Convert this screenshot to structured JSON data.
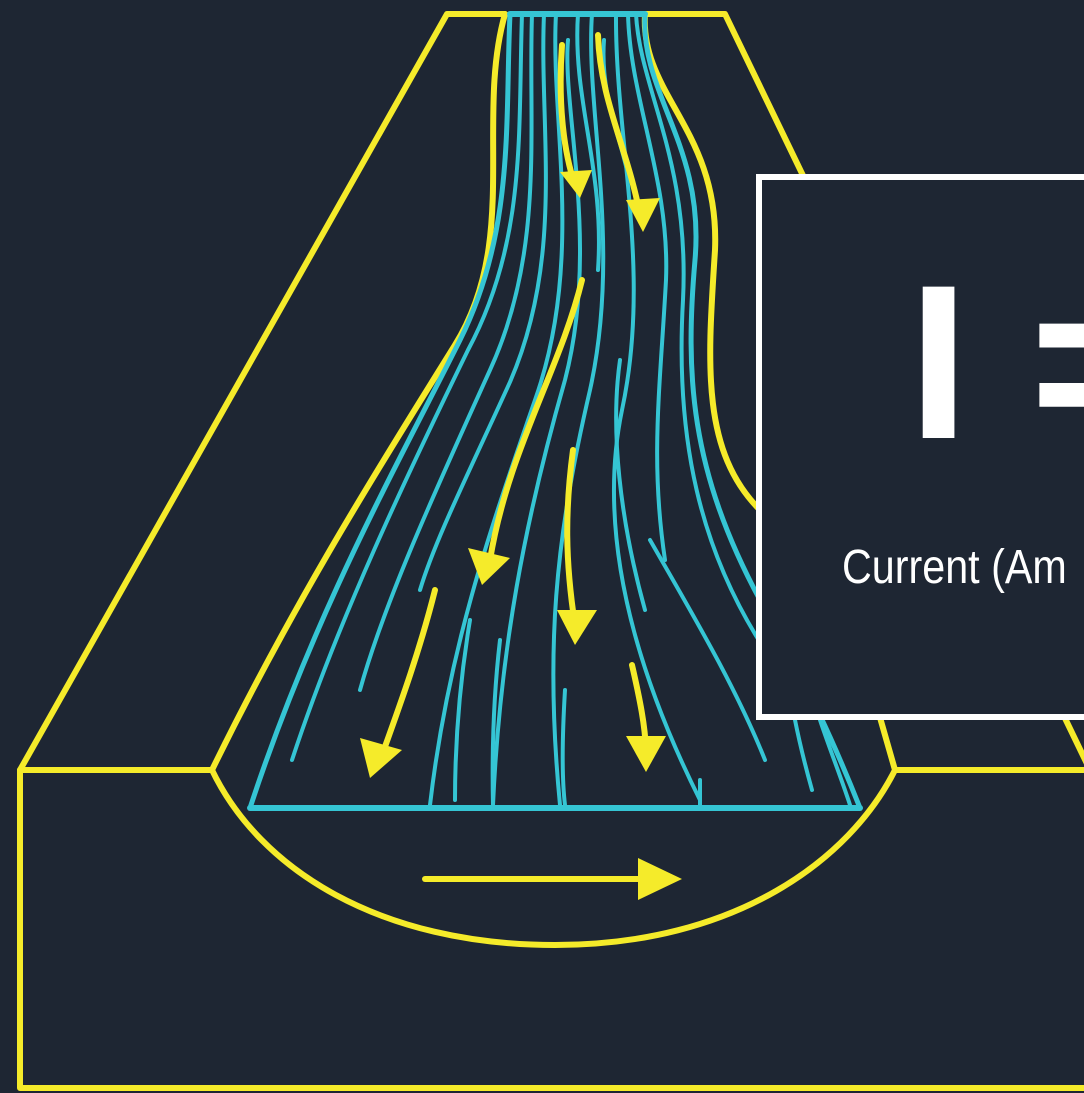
{
  "colors": {
    "background": "#1e2633",
    "outline": "#f5eb2a",
    "flow_lines": "#35c5d4",
    "current_arrows": "#f5eb2a",
    "panel_border": "#ffffff",
    "panel_text": "#ffffff"
  },
  "formula_panel": {
    "symbol": "I =",
    "caption": "Current (Am"
  }
}
